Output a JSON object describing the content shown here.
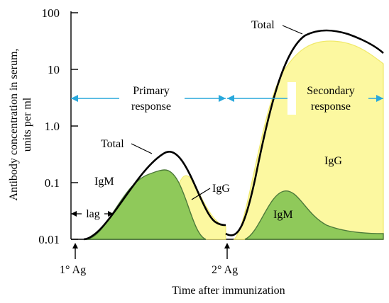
{
  "chart_data": {
    "type": "area",
    "title": "",
    "xlabel": "Time after immunization",
    "ylabel": "Antibody concentration in serum, units per ml",
    "y_scale": "log",
    "ylim": [
      0.01,
      100
    ],
    "y_ticks": [
      {
        "value": 0.01,
        "label": "0.01"
      },
      {
        "value": 0.1,
        "label": "0.1"
      },
      {
        "value": 1.0,
        "label": "1.0"
      },
      {
        "value": 10,
        "label": "10"
      },
      {
        "value": 100,
        "label": "100"
      }
    ],
    "x_ticks_unlabeled": true,
    "series": [
      {
        "name": "Total",
        "color": "#000000"
      },
      {
        "name": "IgM",
        "color": "#8fc95a"
      },
      {
        "name": "IgG",
        "color": "#fcf8a0"
      }
    ],
    "annotations": {
      "primary_response": "Primary\nresponse",
      "secondary_response": "Secondary\nresponse",
      "lag": "lag",
      "first_ag": "1° Ag",
      "second_ag": "2° Ag",
      "total_primary": "Total",
      "total_secondary": "Total",
      "igm_primary": "IgM",
      "igg_primary": "IgG",
      "igm_secondary": "IgM",
      "igg_secondary": "IgG"
    },
    "primary": {
      "total_peak": 0.33,
      "igm_peak": 0.155,
      "igg_peak": 0.12
    },
    "secondary": {
      "total_peak": 45,
      "igg_peak": 28,
      "igm_peak": 0.065
    }
  },
  "colors": {
    "arrow": "#29a8dc",
    "igm_fill": "#8fc95a",
    "igm_stroke": "#4d7a3a",
    "igg_fill": "#fcf8a0",
    "igg_stroke": "#f0e96a",
    "total": "#000000"
  }
}
